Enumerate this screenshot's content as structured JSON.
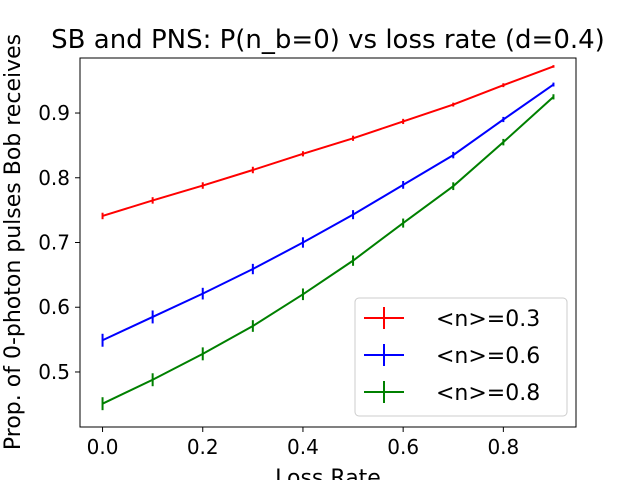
{
  "chart_data": {
    "type": "line",
    "title": "SB and PNS: P(n_b=0) vs loss rate (d=0.4)",
    "xlabel": "Loss Rate",
    "ylabel": "Prop. of 0-photon pulses Bob receives",
    "xlim": [
      -0.045,
      0.945
    ],
    "ylim": [
      0.415,
      0.985
    ],
    "x_ticks": [
      0.0,
      0.2,
      0.4,
      0.6,
      0.8
    ],
    "x_tick_labels": [
      "0.0",
      "0.2",
      "0.4",
      "0.6",
      "0.8"
    ],
    "y_ticks": [
      0.5,
      0.6,
      0.7,
      0.8,
      0.9
    ],
    "y_tick_labels": [
      "0.5",
      "0.6",
      "0.7",
      "0.8",
      "0.9"
    ],
    "grid": false,
    "legend_position": "lower-right",
    "x": [
      0.0,
      0.1,
      0.2,
      0.3,
      0.4,
      0.5,
      0.6,
      0.7,
      0.8,
      0.9
    ],
    "series": [
      {
        "name": "<n>=0.3",
        "color": "#ff0000",
        "values": [
          0.741,
          0.765,
          0.788,
          0.812,
          0.837,
          0.861,
          0.887,
          0.913,
          0.943,
          0.972
        ],
        "errors": [
          0.005,
          0.005,
          0.005,
          0.005,
          0.004,
          0.004,
          0.004,
          0.003,
          0.003,
          0.002
        ]
      },
      {
        "name": "<n>=0.6",
        "color": "#0000ff",
        "values": [
          0.549,
          0.585,
          0.621,
          0.659,
          0.7,
          0.743,
          0.789,
          0.835,
          0.89,
          0.944
        ],
        "errors": [
          0.01,
          0.01,
          0.009,
          0.008,
          0.008,
          0.007,
          0.006,
          0.005,
          0.004,
          0.003
        ]
      },
      {
        "name": "<n>=0.8",
        "color": "#008000",
        "values": [
          0.451,
          0.488,
          0.528,
          0.571,
          0.62,
          0.672,
          0.73,
          0.787,
          0.855,
          0.925
        ],
        "errors": [
          0.01,
          0.01,
          0.01,
          0.009,
          0.009,
          0.008,
          0.007,
          0.006,
          0.005,
          0.004
        ]
      }
    ]
  }
}
